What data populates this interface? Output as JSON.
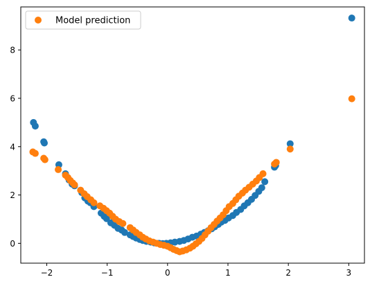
{
  "chart_data": {
    "type": "scatter",
    "title": "",
    "xlabel": "",
    "ylabel": "",
    "xlim": [
      -2.43,
      3.26
    ],
    "ylim": [
      -0.82,
      9.78
    ],
    "xticks": [
      -2,
      -1,
      0,
      1,
      2,
      3
    ],
    "xtick_labels": [
      "−2",
      "−1",
      "0",
      "1",
      "2",
      "3"
    ],
    "yticks": [
      0,
      2,
      4,
      6,
      8
    ],
    "ytick_labels": [
      "0",
      "2",
      "4",
      "6",
      "8"
    ],
    "grid": false,
    "legend": {
      "position": "top-left",
      "entries": [
        "Model prediction"
      ]
    },
    "series": [
      {
        "color": "#1f77b4",
        "x": [
          -2.22,
          -2.19,
          -2.05,
          -2.04,
          -1.8,
          -1.69,
          -1.63,
          -1.58,
          -1.54,
          -1.42,
          -1.37,
          -1.32,
          -1.28,
          -1.22,
          -1.1,
          -1.05,
          -1.01,
          -0.94,
          -0.88,
          -0.82,
          -0.76,
          -0.71,
          -0.62,
          -0.57,
          -0.52,
          -0.46,
          -0.41,
          -0.35,
          -0.28,
          -0.22,
          -0.14,
          -0.08,
          -0.02,
          0.05,
          0.12,
          0.2,
          0.27,
          0.34,
          0.41,
          0.48,
          0.55,
          0.61,
          0.67,
          0.73,
          0.78,
          0.84,
          0.89,
          0.95,
          1.01,
          1.08,
          1.14,
          1.21,
          1.27,
          1.33,
          1.39,
          1.45,
          1.51,
          1.56,
          1.61,
          1.77,
          1.79,
          2.03,
          3.05
        ],
        "y": [
          5.0,
          4.85,
          4.2,
          4.15,
          3.25,
          2.88,
          2.62,
          2.45,
          2.38,
          2.1,
          1.88,
          1.75,
          1.68,
          1.52,
          1.25,
          1.12,
          1.02,
          0.85,
          0.75,
          0.62,
          0.55,
          0.45,
          0.35,
          0.28,
          0.22,
          0.16,
          0.12,
          0.08,
          0.05,
          0.02,
          0.0,
          -0.01,
          0.0,
          0.02,
          0.05,
          0.08,
          0.12,
          0.18,
          0.25,
          0.3,
          0.38,
          0.45,
          0.52,
          0.6,
          0.68,
          0.78,
          0.88,
          0.95,
          1.05,
          1.15,
          1.28,
          1.4,
          1.55,
          1.68,
          1.82,
          1.98,
          2.15,
          2.3,
          2.55,
          3.15,
          3.22,
          4.12,
          9.32
        ]
      },
      {
        "name": "Model prediction",
        "color": "#ff7f0e",
        "x": [
          -2.23,
          -2.19,
          -2.05,
          -2.03,
          -1.81,
          -1.69,
          -1.65,
          -1.61,
          -1.57,
          -1.54,
          -1.44,
          -1.38,
          -1.33,
          -1.27,
          -1.22,
          -1.12,
          -1.06,
          -1.01,
          -0.96,
          -0.91,
          -0.86,
          -0.8,
          -0.74,
          -0.62,
          -0.57,
          -0.52,
          -0.46,
          -0.41,
          -0.36,
          -0.3,
          -0.24,
          -0.18,
          -0.12,
          -0.06,
          0.0,
          0.05,
          0.1,
          0.15,
          0.2,
          0.25,
          0.31,
          0.37,
          0.42,
          0.47,
          0.52,
          0.57,
          0.62,
          0.67,
          0.72,
          0.77,
          0.82,
          0.87,
          0.92,
          0.97,
          1.02,
          1.08,
          1.13,
          1.18,
          1.24,
          1.29,
          1.35,
          1.41,
          1.47,
          1.52,
          1.58,
          1.77,
          1.8,
          2.03,
          3.05
        ],
        "y": [
          3.78,
          3.72,
          3.52,
          3.46,
          3.05,
          2.82,
          2.72,
          2.6,
          2.5,
          2.42,
          2.2,
          2.05,
          1.93,
          1.8,
          1.68,
          1.55,
          1.45,
          1.35,
          1.25,
          1.12,
          1.0,
          0.9,
          0.82,
          0.65,
          0.55,
          0.45,
          0.35,
          0.25,
          0.18,
          0.1,
          0.05,
          0.0,
          -0.05,
          -0.08,
          -0.12,
          -0.18,
          -0.25,
          -0.3,
          -0.35,
          -0.32,
          -0.27,
          -0.2,
          -0.12,
          -0.02,
          0.08,
          0.2,
          0.35,
          0.5,
          0.65,
          0.78,
          0.92,
          1.05,
          1.18,
          1.35,
          1.52,
          1.65,
          1.8,
          1.95,
          2.08,
          2.2,
          2.32,
          2.45,
          2.58,
          2.72,
          2.88,
          3.28,
          3.35,
          3.9,
          5.98
        ]
      }
    ]
  }
}
